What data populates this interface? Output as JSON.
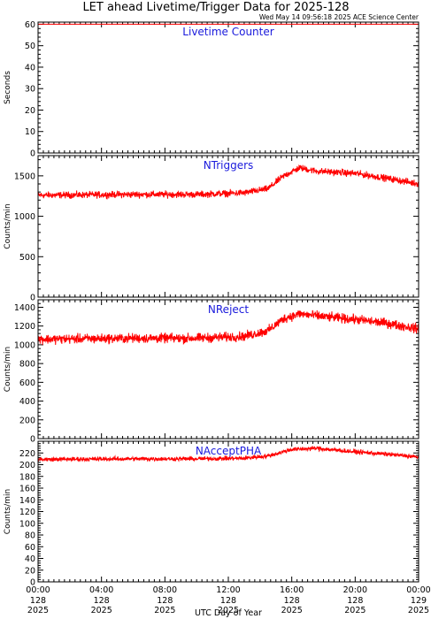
{
  "title": "LET ahead Livetime/Trigger Data for 2025-128",
  "timestamp": "Wed May 14 09:56:18 2025 ACE Science Center",
  "xlabel": "UTC Day of Year",
  "colors": {
    "series": "#ff0000",
    "panel_label": "#1a1adc",
    "frame": "#000000"
  },
  "x_ticks": [
    {
      "time": "00:00",
      "doy": "128",
      "year": "2025"
    },
    {
      "time": "04:00",
      "doy": "128",
      "year": "2025"
    },
    {
      "time": "08:00",
      "doy": "128",
      "year": "2025"
    },
    {
      "time": "12:00",
      "doy": "128",
      "year": "2025"
    },
    {
      "time": "16:00",
      "doy": "128",
      "year": "2025"
    },
    {
      "time": "20:00",
      "doy": "128",
      "year": "2025"
    },
    {
      "time": "00:00",
      "doy": "129",
      "year": "2025"
    }
  ],
  "chart_data": [
    {
      "type": "line",
      "title": "Livetime Counter",
      "ylabel": "Seconds",
      "ylim": [
        0,
        61
      ],
      "yticks": [
        0,
        10,
        20,
        30,
        40,
        50,
        60
      ],
      "xlim_hours": [
        0,
        24
      ],
      "series": [
        {
          "points": [
            [
              0,
              60
            ],
            [
              24,
              60
            ]
          ],
          "noise": 0
        }
      ]
    },
    {
      "type": "line",
      "title": "NTriggers",
      "ylabel": "Counts/min",
      "ylim": [
        0,
        1750
      ],
      "yticks": [
        0,
        500,
        1000,
        1500
      ],
      "xlim_hours": [
        0,
        24
      ],
      "series": [
        {
          "points": [
            [
              0,
              1260
            ],
            [
              6,
              1270
            ],
            [
              10,
              1270
            ],
            [
              13,
              1290
            ],
            [
              14.5,
              1340
            ],
            [
              15.5,
              1500
            ],
            [
              16.5,
              1600
            ],
            [
              17.5,
              1560
            ],
            [
              20,
              1530
            ],
            [
              22,
              1470
            ],
            [
              24,
              1400
            ]
          ],
          "noise": 45
        }
      ]
    },
    {
      "type": "line",
      "title": "NReject",
      "ylabel": "Counts/min",
      "ylim": [
        0,
        1480
      ],
      "yticks": [
        0,
        200,
        400,
        600,
        800,
        1000,
        1200,
        1400
      ],
      "xlim_hours": [
        0,
        24
      ],
      "series": [
        {
          "points": [
            [
              0,
              1060
            ],
            [
              6,
              1070
            ],
            [
              10,
              1070
            ],
            [
              13,
              1090
            ],
            [
              14.5,
              1150
            ],
            [
              15.5,
              1280
            ],
            [
              16.5,
              1330
            ],
            [
              18,
              1300
            ],
            [
              20,
              1270
            ],
            [
              22,
              1230
            ],
            [
              24,
              1170
            ]
          ],
          "noise": 55
        }
      ]
    },
    {
      "type": "line",
      "title": "NAcceptPHA",
      "ylabel": "Counts/min",
      "ylim": [
        0,
        240
      ],
      "yticks": [
        0,
        20,
        40,
        60,
        80,
        100,
        120,
        140,
        160,
        180,
        200,
        220
      ],
      "xlim_hours": [
        0,
        24
      ],
      "series": [
        {
          "points": [
            [
              0,
              209
            ],
            [
              6,
              210
            ],
            [
              10,
              210
            ],
            [
              13,
              211
            ],
            [
              14.5,
              215
            ],
            [
              16,
              226
            ],
            [
              17.5,
              228
            ],
            [
              20,
              222
            ],
            [
              22,
              218
            ],
            [
              24,
              213
            ]
          ],
          "noise": 4
        }
      ]
    }
  ]
}
